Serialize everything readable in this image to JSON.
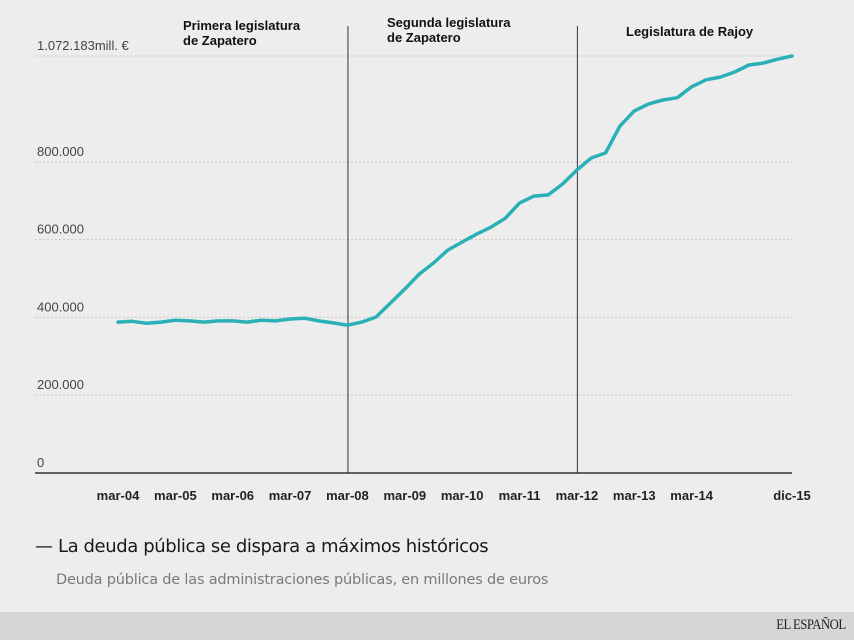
{
  "chart_data": {
    "type": "line",
    "title": "La deuda pública se dispara a máximos históricos",
    "subtitle": "Deuda pública de las administraciones públicas, en millones de euros",
    "xlabel": "",
    "ylabel": "",
    "ylim": [
      0,
      1072183
    ],
    "grid": true,
    "y_ticks": [
      {
        "value": 0,
        "label": "0"
      },
      {
        "value": 200000,
        "label": "200.000"
      },
      {
        "value": 400000,
        "label": "400.000"
      },
      {
        "value": 600000,
        "label": "600.000"
      },
      {
        "value": 800000,
        "label": "800.000"
      },
      {
        "value": 1072183,
        "label": "1.072.183mill. €"
      }
    ],
    "x_ticks": [
      {
        "index": 0,
        "label": "mar-04"
      },
      {
        "index": 4,
        "label": "mar-05"
      },
      {
        "index": 8,
        "label": "mar-06"
      },
      {
        "index": 12,
        "label": "mar-07"
      },
      {
        "index": 16,
        "label": "mar-08"
      },
      {
        "index": 20,
        "label": "mar-09"
      },
      {
        "index": 24,
        "label": "mar-10"
      },
      {
        "index": 28,
        "label": "mar-11"
      },
      {
        "index": 32,
        "label": "mar-12"
      },
      {
        "index": 36,
        "label": "mar-13"
      },
      {
        "index": 40,
        "label": "mar-14"
      },
      {
        "index": 47,
        "label": "dic-15"
      }
    ],
    "x": [
      "mar-04",
      "jun-04",
      "sep-04",
      "dic-04",
      "mar-05",
      "jun-05",
      "sep-05",
      "dic-05",
      "mar-06",
      "jun-06",
      "sep-06",
      "dic-06",
      "mar-07",
      "jun-07",
      "sep-07",
      "dic-07",
      "mar-08",
      "jun-08",
      "sep-08",
      "dic-08",
      "mar-09",
      "jun-09",
      "sep-09",
      "dic-09",
      "mar-10",
      "jun-10",
      "sep-10",
      "dic-10",
      "mar-11",
      "jun-11",
      "sep-11",
      "dic-11",
      "mar-12",
      "jun-12",
      "sep-12",
      "dic-12",
      "mar-13",
      "jun-13",
      "sep-13",
      "dic-13",
      "mar-14",
      "jun-14",
      "sep-14",
      "dic-14",
      "mar-15",
      "jun-15",
      "sep-15",
      "dic-15"
    ],
    "series": [
      {
        "name": "Deuda pública",
        "color": "#2bb0b8",
        "values": [
          388000,
          390000,
          385000,
          388000,
          393000,
          391000,
          388000,
          391000,
          391000,
          388000,
          393000,
          391000,
          396000,
          398000,
          391000,
          386000,
          380000,
          388000,
          401000,
          437000,
          473000,
          511000,
          540000,
          573000,
          594000,
          614000,
          632000,
          655000,
          694000,
          712000,
          715000,
          743000,
          779000,
          810000,
          823000,
          892000,
          931000,
          949000,
          959000,
          965000,
          993000,
          1011000,
          1018000,
          1031000,
          1049000,
          1054000,
          1064000,
          1072183
        ]
      }
    ],
    "periods": [
      {
        "label_lines": [
          "Primera legislatura",
          "de Zapatero"
        ],
        "start_index": 0,
        "end_index": 16
      },
      {
        "label_lines": [
          "Segunda legislatura",
          "de Zapatero"
        ],
        "start_index": 16,
        "end_index": 32
      },
      {
        "label_lines": [
          "Legislatura de Rajoy"
        ],
        "start_index": 32,
        "end_index": 47
      }
    ],
    "period_dividers": [
      16,
      32
    ]
  },
  "caption": {
    "dash": "—",
    "title": "La deuda pública se dispara a máximos históricos",
    "subtitle": "Deuda pública de las administraciones públicas, en millones de euros"
  },
  "footer": {
    "brand": "EL ESPAÑOL"
  }
}
